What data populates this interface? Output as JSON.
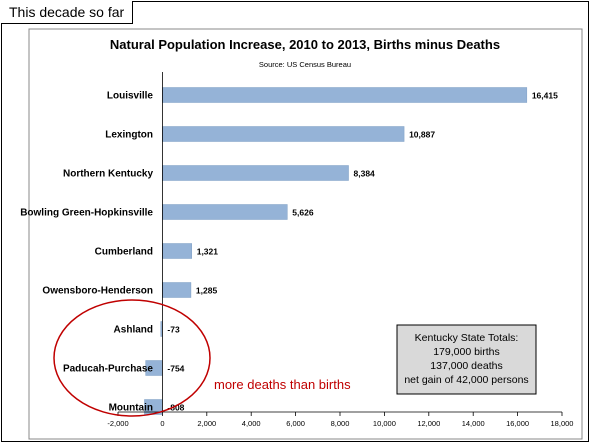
{
  "header_tag": "This decade so far",
  "chart_data": {
    "type": "bar",
    "orientation": "horizontal",
    "title": "Natural Population Increase, 2010 to 2013, Births minus Deaths",
    "subtitle": "Source: US Census Bureau",
    "categories": [
      "Louisville",
      "Lexington",
      "Northern Kentucky",
      "Bowling Green-Hopkinsville",
      "Cumberland",
      "Owensboro-Henderson",
      "Ashland",
      "Paducah-Purchase",
      "Mountain"
    ],
    "values": [
      16415,
      10887,
      8384,
      5626,
      1321,
      1285,
      -73,
      -754,
      -808
    ],
    "data_labels": [
      "16,415",
      "10,887",
      "8,384",
      "5,626",
      "1,321",
      "1,285",
      "-73",
      "-754",
      "-808"
    ],
    "xlim": [
      -2000,
      18000
    ],
    "xticks": [
      -2000,
      0,
      2000,
      4000,
      6000,
      8000,
      10000,
      12000,
      14000,
      16000,
      18000
    ],
    "xtick_labels": [
      "-2,000",
      "0",
      "2,000",
      "4,000",
      "6,000",
      "8,000",
      "10,000",
      "12,000",
      "14,000",
      "16,000",
      "18,000"
    ],
    "grid": false,
    "legend": "none",
    "bar_color": "#95b3d7",
    "bar_edge_color": "#7f9fc4"
  },
  "annotation": {
    "text": "more deaths than births",
    "color": "#c00000"
  },
  "totals_box": {
    "lines": [
      "Kentucky State Totals:",
      "179,000 births",
      "137,000 deaths",
      "net gain of 42,000 persons"
    ],
    "background": "#d9d9d9"
  }
}
